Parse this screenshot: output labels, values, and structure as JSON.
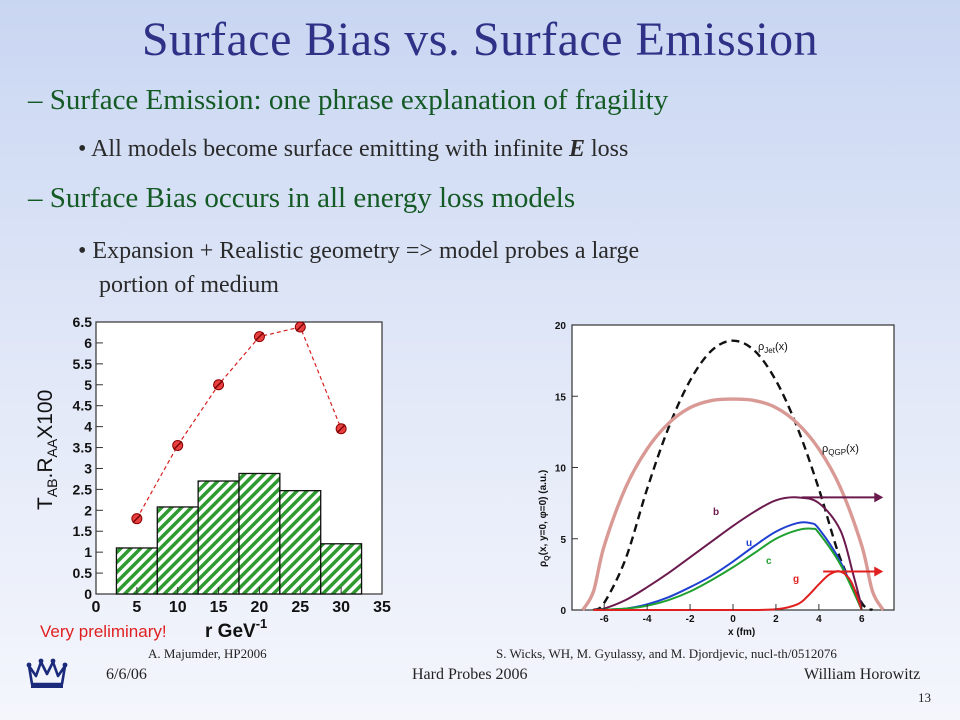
{
  "slide": {
    "title": "Surface Bias vs. Surface Emission",
    "bullets": [
      {
        "dash": "–",
        "text": "Surface Emission: one phrase explanation of fragility"
      },
      {
        "dot": "•",
        "pre": "All models become surface emitting with infinite ",
        "em": "E",
        "post": " loss"
      },
      {
        "dash": "–",
        "text": "Surface Bias occurs in all energy loss models"
      },
      {
        "dot": "•",
        "line1": "Expansion + Realistic geometry => model probes a large",
        "line2": "portion of medium"
      }
    ],
    "left_caption": "A. Majumder, HP2006",
    "right_caption": "S. Wicks, WH, M. Gyulassy, and M. Djordjevic, nucl-th/0512076",
    "footer": {
      "date": "6/6/06",
      "center": "Hard Probes 2006",
      "author": "William Horowitz",
      "page": "13"
    },
    "colors": {
      "title": "#2e3186",
      "bullet_main": "#145a24",
      "bar": "#2f9a2f",
      "points": "#d62020"
    }
  },
  "chart_data": [
    {
      "type": "bar",
      "title": "",
      "xlabel": "r GeV",
      "xlabel_sup": "-1",
      "ylabel": "T_AB . R_AA X100",
      "ylabel_parts": {
        "t": "T",
        "sub1": "AB",
        "mid": ".R",
        "sub2": "AA",
        "end": "X100"
      },
      "annotation": "Very preliminary!",
      "xlim": [
        0,
        35
      ],
      "ylim": [
        0,
        6.5
      ],
      "x_ticks": [
        "0",
        "5",
        "10",
        "15",
        "20",
        "25",
        "30",
        "35"
      ],
      "y_ticks": [
        "0",
        "0.5",
        "1",
        "1.5",
        "2",
        "2.5",
        "3",
        "3.5",
        "4",
        "4.5",
        "5",
        "5.5",
        "6",
        "6.5"
      ],
      "bars": [
        {
          "x0": 2.5,
          "x1": 7.5,
          "value": 1.1
        },
        {
          "x0": 7.5,
          "x1": 12.5,
          "value": 2.08
        },
        {
          "x0": 12.5,
          "x1": 17.5,
          "value": 2.7
        },
        {
          "x0": 17.5,
          "x1": 22.5,
          "value": 2.88
        },
        {
          "x0": 22.5,
          "x1": 27.5,
          "value": 2.47
        },
        {
          "x0": 27.5,
          "x1": 32.5,
          "value": 1.2
        }
      ],
      "points": {
        "x": [
          5,
          10,
          15,
          20,
          25,
          30
        ],
        "y": [
          1.8,
          3.55,
          5.0,
          6.15,
          6.38,
          3.95
        ]
      }
    },
    {
      "type": "line",
      "title": "",
      "xlabel": "x (fm)",
      "ylabel": "ρ_Q(x, y=0, φ=0) (a.u.)",
      "xlim": [
        -7.5,
        7.5
      ],
      "ylim": [
        0,
        20
      ],
      "x_ticks": [
        "-6",
        "-4",
        "-2",
        "0",
        "2",
        "4",
        "6"
      ],
      "y_ticks": [
        "0",
        "5",
        "10",
        "15",
        "20"
      ],
      "series": [
        {
          "name": "ρ_Jet(x)",
          "style": "dashed",
          "color": "#111111",
          "x": [
            -6.5,
            -6,
            -5,
            -4,
            -3,
            -2,
            -1,
            0,
            1,
            2,
            3,
            4,
            5,
            6,
            6.5
          ],
          "y": [
            0,
            0.5,
            3.6,
            8.5,
            12.8,
            16.1,
            18.2,
            18.9,
            18.2,
            16.1,
            12.8,
            8.5,
            3.6,
            0.5,
            0
          ]
        },
        {
          "name": "ρ_QGP(x)",
          "style": "solid",
          "color": "#d99a96",
          "x": [
            -7,
            -6.5,
            -6,
            -5,
            -4,
            -3,
            -2,
            -1,
            0,
            1,
            2,
            3,
            4,
            5,
            6,
            6.5,
            7
          ],
          "y": [
            0,
            1.3,
            4.5,
            8.6,
            11.3,
            13.1,
            14.2,
            14.7,
            14.8,
            14.7,
            14.2,
            13.1,
            11.3,
            8.6,
            4.5,
            1.3,
            0
          ]
        },
        {
          "name": "b",
          "style": "solid",
          "color": "#6b1a4e",
          "x": [
            -6.5,
            -6,
            -5,
            -4,
            -3,
            -2,
            -1,
            0,
            1,
            2,
            3,
            4,
            5,
            5.6,
            6
          ],
          "y": [
            0,
            0.1,
            0.7,
            1.6,
            2.6,
            3.7,
            4.8,
            5.9,
            6.9,
            7.7,
            7.9,
            7.5,
            5.6,
            2.5,
            0.2
          ]
        },
        {
          "name": "u",
          "style": "solid",
          "color": "#2040d0",
          "x": [
            -6.5,
            -5,
            -4,
            -3,
            -2,
            -1,
            0,
            1,
            2,
            3,
            3.6,
            4,
            5,
            6
          ],
          "y": [
            0,
            0.1,
            0.4,
            0.9,
            1.6,
            2.4,
            3.4,
            4.5,
            5.5,
            6.1,
            6.1,
            5.7,
            3.4,
            0
          ]
        },
        {
          "name": "c",
          "style": "solid",
          "color": "#20a030",
          "x": [
            -6.5,
            -5,
            -4,
            -3,
            -2,
            -1,
            0,
            1,
            2,
            3,
            3.7,
            4,
            5,
            6
          ],
          "y": [
            0,
            0.1,
            0.3,
            0.7,
            1.3,
            2.1,
            3.0,
            4.0,
            5.0,
            5.6,
            5.7,
            5.4,
            3.2,
            0
          ]
        },
        {
          "name": "g",
          "style": "solid",
          "color": "#e02020",
          "x": [
            -6.5,
            0,
            2,
            3,
            3.5,
            4,
            4.5,
            5,
            5.5,
            6
          ],
          "y": [
            0,
            0,
            0.05,
            0.4,
            1.0,
            1.8,
            2.5,
            2.7,
            2.0,
            0
          ]
        }
      ],
      "arrows": [
        {
          "color": "#6b1a4e",
          "from_x": 3.2,
          "to_x": 7.0,
          "y": 7.9
        },
        {
          "color": "#e02020",
          "from_x": 4.2,
          "to_x": 7.0,
          "y": 2.7
        }
      ]
    }
  ]
}
